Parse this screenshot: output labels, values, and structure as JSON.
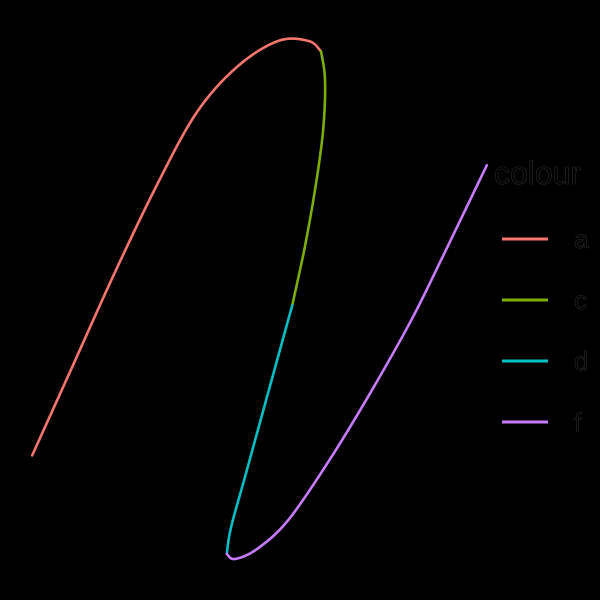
{
  "chart_data": {
    "type": "line",
    "title": "",
    "xlabel": "",
    "ylabel": "",
    "grid": false,
    "legend": {
      "title": "colour",
      "placement": "right",
      "entries": [
        {
          "label": "a",
          "color": "#F8766D"
        },
        {
          "label": "c",
          "color": "#7CAE00"
        },
        {
          "label": "d",
          "color": "#00BFC4"
        },
        {
          "label": "f",
          "color": "#C77CFF"
        }
      ]
    },
    "xlim": [
      -1.05,
      1.05
    ],
    "ylim": [
      -1.05,
      1.05
    ],
    "series": [
      {
        "name": "a",
        "color": "#F8766D",
        "points": [
          [
            -1.0,
            -0.6
          ],
          [
            -0.8,
            -0.25
          ],
          [
            -0.6,
            0.1
          ],
          [
            -0.4,
            0.43
          ],
          [
            -0.2,
            0.72
          ],
          [
            0.0,
            0.9
          ],
          [
            0.2,
            1.0
          ],
          [
            0.35,
            1.0
          ],
          [
            0.41,
            0.96
          ]
        ]
      },
      {
        "name": "c",
        "color": "#7CAE00",
        "points": [
          [
            0.41,
            0.96
          ],
          [
            0.43,
            0.85
          ],
          [
            0.42,
            0.65
          ],
          [
            0.38,
            0.42
          ],
          [
            0.33,
            0.2
          ],
          [
            0.27,
            -0.02
          ]
        ]
      },
      {
        "name": "d",
        "color": "#00BFC4",
        "points": [
          [
            0.27,
            -0.02
          ],
          [
            0.2,
            -0.22
          ],
          [
            0.12,
            -0.45
          ],
          [
            0.04,
            -0.68
          ],
          [
            -0.03,
            -0.88
          ],
          [
            -0.05,
            -0.98
          ]
        ]
      },
      {
        "name": "f",
        "color": "#C77CFF",
        "points": [
          [
            -0.05,
            -0.98
          ],
          [
            -0.01,
            -1.0
          ],
          [
            0.1,
            -0.96
          ],
          [
            0.25,
            -0.85
          ],
          [
            0.45,
            -0.62
          ],
          [
            0.65,
            -0.36
          ],
          [
            0.85,
            -0.08
          ],
          [
            1.0,
            0.16
          ],
          [
            1.22,
            0.52
          ]
        ]
      }
    ]
  }
}
